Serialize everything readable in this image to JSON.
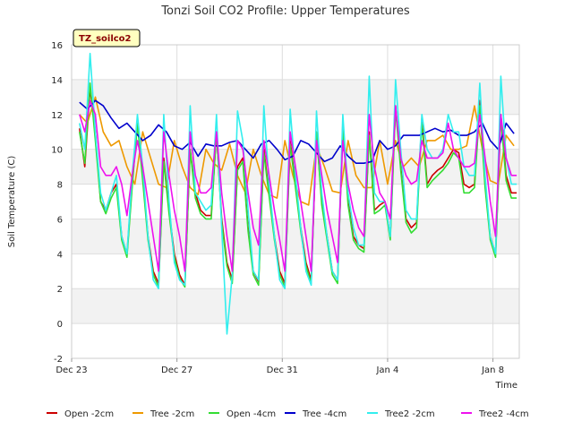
{
  "chart_data": {
    "type": "line",
    "title": "Tonzi Soil CO2 Profile: Upper Temperatures",
    "xlabel": "Time",
    "ylabel": "Soil Temperature (C)",
    "ylim": [
      -2,
      16
    ],
    "yticks": [
      -2,
      0,
      2,
      4,
      6,
      8,
      10,
      12,
      14,
      16
    ],
    "xlim": [
      0,
      17
    ],
    "xticks": [
      {
        "x": 0,
        "label": "Dec 23"
      },
      {
        "x": 4,
        "label": "Dec 27"
      },
      {
        "x": 8,
        "label": "Dec 31"
      },
      {
        "x": 12,
        "label": "Jan 4"
      },
      {
        "x": 16,
        "label": "Jan 8"
      }
    ],
    "grid": true,
    "legend_position": "bottom",
    "site_label": "TZ_soilco2",
    "series": [
      {
        "name": "Open -2cm",
        "color": "#cc0000",
        "x": [
          0.3,
          0.5,
          0.7,
          0.9,
          1.1,
          1.3,
          1.5,
          1.7,
          1.9,
          2.1,
          2.3,
          2.5,
          2.7,
          2.9,
          3.1,
          3.3,
          3.5,
          3.7,
          3.9,
          4.1,
          4.3,
          4.5,
          4.7,
          4.9,
          5.1,
          5.3,
          5.5,
          5.7,
          5.9,
          6.1,
          6.3,
          6.5,
          6.7,
          6.9,
          7.1,
          7.3,
          7.5,
          7.7,
          7.9,
          8.1,
          8.3,
          8.5,
          8.7,
          8.9,
          9.1,
          9.3,
          9.5,
          9.7,
          9.9,
          10.1,
          10.3,
          10.5,
          10.7,
          10.9,
          11.1,
          11.3,
          11.5,
          11.7,
          11.9,
          12.1,
          12.3,
          12.5,
          12.7,
          12.9,
          13.1,
          13.3,
          13.5,
          13.7,
          13.9,
          14.1,
          14.3,
          14.5,
          14.7,
          14.9,
          15.1,
          15.3,
          15.5,
          15.7,
          15.9,
          16.1,
          16.3,
          16.5,
          16.7,
          16.9
        ],
        "y": [
          11.2,
          9.0,
          13.5,
          11.0,
          7.0,
          6.5,
          7.5,
          8.0,
          5.0,
          4.0,
          8.0,
          11.5,
          8.5,
          5.0,
          3.0,
          2.3,
          9.5,
          6.5,
          4.0,
          2.8,
          2.2,
          10.0,
          7.5,
          6.5,
          6.2,
          6.2,
          11.0,
          6.0,
          3.5,
          2.5,
          9.0,
          9.5,
          5.5,
          3.0,
          2.4,
          10.0,
          7.5,
          5.0,
          3.0,
          2.3,
          10.5,
          8.0,
          5.5,
          3.5,
          2.5,
          11.0,
          7.0,
          5.0,
          3.0,
          2.5,
          11.5,
          7.0,
          5.0,
          4.5,
          4.3,
          11.0,
          6.5,
          6.8,
          7.0,
          5.0,
          12.5,
          9.0,
          6.0,
          5.5,
          5.8,
          11.8,
          8.0,
          8.5,
          8.8,
          9.0,
          9.5,
          10.0,
          9.8,
          8.0,
          7.8,
          8.0,
          12.8,
          8.0,
          5.0,
          4.0,
          12.0,
          8.5,
          7.5,
          7.5
        ]
      },
      {
        "name": "Tree -2cm",
        "color": "#ee9900",
        "x": [
          0.3,
          0.6,
          0.9,
          1.2,
          1.5,
          1.8,
          2.1,
          2.4,
          2.7,
          3.0,
          3.3,
          3.6,
          3.9,
          4.2,
          4.5,
          4.8,
          5.1,
          5.4,
          5.7,
          6.0,
          6.3,
          6.6,
          6.9,
          7.2,
          7.5,
          7.8,
          8.1,
          8.4,
          8.7,
          9.0,
          9.3,
          9.6,
          9.9,
          10.2,
          10.5,
          10.8,
          11.1,
          11.4,
          11.7,
          12.0,
          12.3,
          12.6,
          12.9,
          13.2,
          13.5,
          13.8,
          14.1,
          14.4,
          14.7,
          15.0,
          15.3,
          15.6,
          15.9,
          16.2,
          16.5,
          16.8
        ],
        "y": [
          12.0,
          11.5,
          13.0,
          11.0,
          10.2,
          10.5,
          9.0,
          8.0,
          11.0,
          9.5,
          8.0,
          7.8,
          10.5,
          9.0,
          7.8,
          7.4,
          10.0,
          9.2,
          8.8,
          10.3,
          8.5,
          7.5,
          10.0,
          8.5,
          7.4,
          7.2,
          10.5,
          8.5,
          7.0,
          6.8,
          10.2,
          9.0,
          7.6,
          7.5,
          10.5,
          8.5,
          7.8,
          7.8,
          10.5,
          8.0,
          10.5,
          9.0,
          9.5,
          9.0,
          10.5,
          10.5,
          10.8,
          10.0,
          10.0,
          10.2,
          12.5,
          10.0,
          8.2,
          8.0,
          10.8,
          10.2
        ]
      },
      {
        "name": "Open -4cm",
        "color": "#33dd33",
        "x": [
          0.3,
          0.5,
          0.7,
          0.9,
          1.1,
          1.3,
          1.5,
          1.7,
          1.9,
          2.1,
          2.3,
          2.5,
          2.7,
          2.9,
          3.1,
          3.3,
          3.5,
          3.7,
          3.9,
          4.1,
          4.3,
          4.5,
          4.7,
          4.9,
          5.1,
          5.3,
          5.5,
          5.7,
          5.9,
          6.1,
          6.3,
          6.5,
          6.7,
          6.9,
          7.1,
          7.3,
          7.5,
          7.7,
          7.9,
          8.1,
          8.3,
          8.5,
          8.7,
          8.9,
          9.1,
          9.3,
          9.5,
          9.7,
          9.9,
          10.1,
          10.3,
          10.5,
          10.7,
          10.9,
          11.1,
          11.3,
          11.5,
          11.7,
          11.9,
          12.1,
          12.3,
          12.5,
          12.7,
          12.9,
          13.1,
          13.3,
          13.5,
          13.7,
          13.9,
          14.1,
          14.3,
          14.5,
          14.7,
          14.9,
          15.1,
          15.3,
          15.5,
          15.7,
          15.9,
          16.1,
          16.3,
          16.5,
          16.7,
          16.9
        ],
        "y": [
          11.0,
          9.2,
          13.8,
          10.5,
          7.0,
          6.3,
          7.2,
          7.8,
          4.8,
          3.8,
          7.8,
          11.5,
          8.2,
          4.8,
          2.8,
          2.1,
          9.3,
          6.3,
          3.8,
          2.6,
          2.1,
          10.0,
          7.2,
          6.3,
          6.0,
          6.0,
          11.0,
          5.8,
          3.3,
          2.3,
          8.8,
          9.3,
          5.3,
          2.8,
          2.2,
          9.8,
          7.3,
          4.8,
          2.8,
          2.1,
          10.3,
          7.8,
          5.3,
          3.3,
          2.3,
          11.0,
          6.8,
          4.8,
          2.8,
          2.3,
          11.3,
          6.8,
          4.8,
          4.3,
          4.1,
          10.8,
          6.3,
          6.5,
          6.8,
          4.8,
          12.3,
          8.8,
          5.8,
          5.2,
          5.5,
          11.5,
          7.8,
          8.2,
          8.5,
          8.8,
          9.2,
          9.8,
          9.5,
          7.5,
          7.5,
          7.8,
          12.5,
          7.8,
          4.8,
          3.8,
          11.8,
          8.2,
          7.2,
          7.2
        ]
      },
      {
        "name": "Tree -4cm",
        "color": "#0000cc",
        "x": [
          0.3,
          0.6,
          0.9,
          1.2,
          1.5,
          1.8,
          2.1,
          2.4,
          2.7,
          3.0,
          3.3,
          3.6,
          3.9,
          4.2,
          4.5,
          4.8,
          5.1,
          5.4,
          5.7,
          6.0,
          6.3,
          6.6,
          6.9,
          7.2,
          7.5,
          7.8,
          8.1,
          8.4,
          8.7,
          9.0,
          9.3,
          9.6,
          9.9,
          10.2,
          10.5,
          10.8,
          11.1,
          11.4,
          11.7,
          12.0,
          12.3,
          12.6,
          12.9,
          13.2,
          13.5,
          13.8,
          14.1,
          14.4,
          14.7,
          15.0,
          15.3,
          15.6,
          15.9,
          16.2,
          16.5,
          16.8
        ],
        "y": [
          12.7,
          12.3,
          12.8,
          12.5,
          11.8,
          11.2,
          11.5,
          11.0,
          10.5,
          10.8,
          11.4,
          11.0,
          10.2,
          10.0,
          10.4,
          9.6,
          10.3,
          10.2,
          10.2,
          10.4,
          10.5,
          10.0,
          9.5,
          10.3,
          10.5,
          10.0,
          9.4,
          9.6,
          10.5,
          10.3,
          9.8,
          9.3,
          9.5,
          10.2,
          9.6,
          9.2,
          9.2,
          9.3,
          10.5,
          10.0,
          10.2,
          10.8,
          10.8,
          10.8,
          11.0,
          11.2,
          11.0,
          11.1,
          10.8,
          10.8,
          11.0,
          11.5,
          10.5,
          10.0,
          11.5,
          10.9
        ]
      },
      {
        "name": "Tree2 -2cm",
        "color": "#33eeee",
        "x": [
          0.3,
          0.5,
          0.7,
          0.9,
          1.1,
          1.3,
          1.5,
          1.7,
          1.9,
          2.1,
          2.3,
          2.5,
          2.7,
          2.9,
          3.1,
          3.3,
          3.5,
          3.7,
          3.9,
          4.1,
          4.3,
          4.5,
          4.7,
          4.9,
          5.1,
          5.3,
          5.5,
          5.7,
          5.9,
          6.1,
          6.3,
          6.5,
          6.7,
          6.9,
          7.1,
          7.3,
          7.5,
          7.7,
          7.9,
          8.1,
          8.3,
          8.5,
          8.7,
          8.9,
          9.1,
          9.3,
          9.5,
          9.7,
          9.9,
          10.1,
          10.3,
          10.5,
          10.7,
          10.9,
          11.1,
          11.3,
          11.5,
          11.7,
          11.9,
          12.1,
          12.3,
          12.5,
          12.7,
          12.9,
          13.1,
          13.3,
          13.5,
          13.7,
          13.9,
          14.1,
          14.3,
          14.5,
          14.7,
          14.9,
          15.1,
          15.3,
          15.5,
          15.7,
          15.9,
          16.1,
          16.3,
          16.5,
          16.7,
          16.9
        ],
        "y": [
          11.5,
          10.0,
          15.5,
          11.0,
          7.5,
          6.5,
          7.5,
          8.5,
          5.0,
          4.0,
          8.5,
          12.0,
          9.0,
          5.0,
          2.5,
          2.0,
          12.0,
          7.0,
          3.5,
          2.5,
          2.2,
          12.5,
          7.5,
          7.0,
          6.5,
          6.8,
          12.0,
          5.5,
          -0.6,
          2.8,
          12.2,
          10.5,
          6.5,
          3.0,
          2.5,
          12.5,
          8.0,
          5.0,
          2.5,
          2.0,
          12.3,
          8.5,
          5.5,
          3.0,
          2.2,
          12.2,
          7.5,
          5.0,
          3.0,
          2.5,
          12.0,
          7.5,
          5.5,
          4.5,
          4.5,
          14.2,
          7.5,
          7.0,
          7.0,
          5.0,
          14.0,
          10.0,
          6.5,
          6.0,
          6.0,
          12.0,
          10.0,
          9.5,
          9.5,
          10.0,
          12.0,
          11.0,
          11.0,
          9.0,
          8.5,
          8.5,
          13.8,
          8.5,
          5.0,
          4.0,
          14.2,
          9.5,
          8.0,
          8.0
        ]
      },
      {
        "name": "Tree2 -4cm",
        "color": "#ee11ee",
        "x": [
          0.3,
          0.5,
          0.7,
          0.9,
          1.1,
          1.3,
          1.5,
          1.7,
          1.9,
          2.1,
          2.3,
          2.5,
          2.7,
          2.9,
          3.1,
          3.3,
          3.5,
          3.7,
          3.9,
          4.1,
          4.3,
          4.5,
          4.7,
          4.9,
          5.1,
          5.3,
          5.5,
          5.7,
          5.9,
          6.1,
          6.3,
          6.5,
          6.7,
          6.9,
          7.1,
          7.3,
          7.5,
          7.7,
          7.9,
          8.1,
          8.3,
          8.5,
          8.7,
          8.9,
          9.1,
          9.3,
          9.5,
          9.7,
          9.9,
          10.1,
          10.3,
          10.5,
          10.7,
          10.9,
          11.1,
          11.3,
          11.5,
          11.7,
          11.9,
          12.1,
          12.3,
          12.5,
          12.7,
          12.9,
          13.1,
          13.3,
          13.5,
          13.7,
          13.9,
          14.1,
          14.3,
          14.5,
          14.7,
          14.9,
          15.1,
          15.3,
          15.5,
          15.7,
          15.9,
          16.1,
          16.3,
          16.5,
          16.7,
          16.9
        ],
        "y": [
          12.0,
          11.0,
          12.8,
          12.0,
          9.0,
          8.5,
          8.5,
          9.0,
          8.0,
          6.2,
          8.5,
          10.5,
          9.0,
          7.0,
          5.0,
          3.0,
          11.0,
          8.5,
          6.5,
          5.0,
          3.0,
          11.0,
          8.5,
          7.5,
          7.5,
          7.8,
          11.0,
          7.5,
          5.0,
          3.0,
          10.5,
          10.0,
          7.5,
          5.5,
          4.5,
          10.5,
          8.5,
          6.5,
          4.8,
          3.0,
          11.0,
          9.0,
          7.0,
          5.0,
          3.0,
          10.5,
          8.5,
          6.5,
          5.0,
          3.5,
          10.5,
          8.0,
          6.5,
          5.5,
          5.0,
          12.0,
          9.0,
          7.5,
          7.0,
          6.0,
          12.5,
          9.5,
          8.5,
          8.0,
          8.2,
          10.5,
          9.5,
          9.5,
          9.5,
          9.8,
          11.5,
          10.0,
          9.5,
          9.0,
          9.0,
          9.2,
          12.0,
          9.5,
          7.0,
          5.0,
          12.0,
          9.5,
          8.5,
          8.5
        ]
      }
    ]
  }
}
